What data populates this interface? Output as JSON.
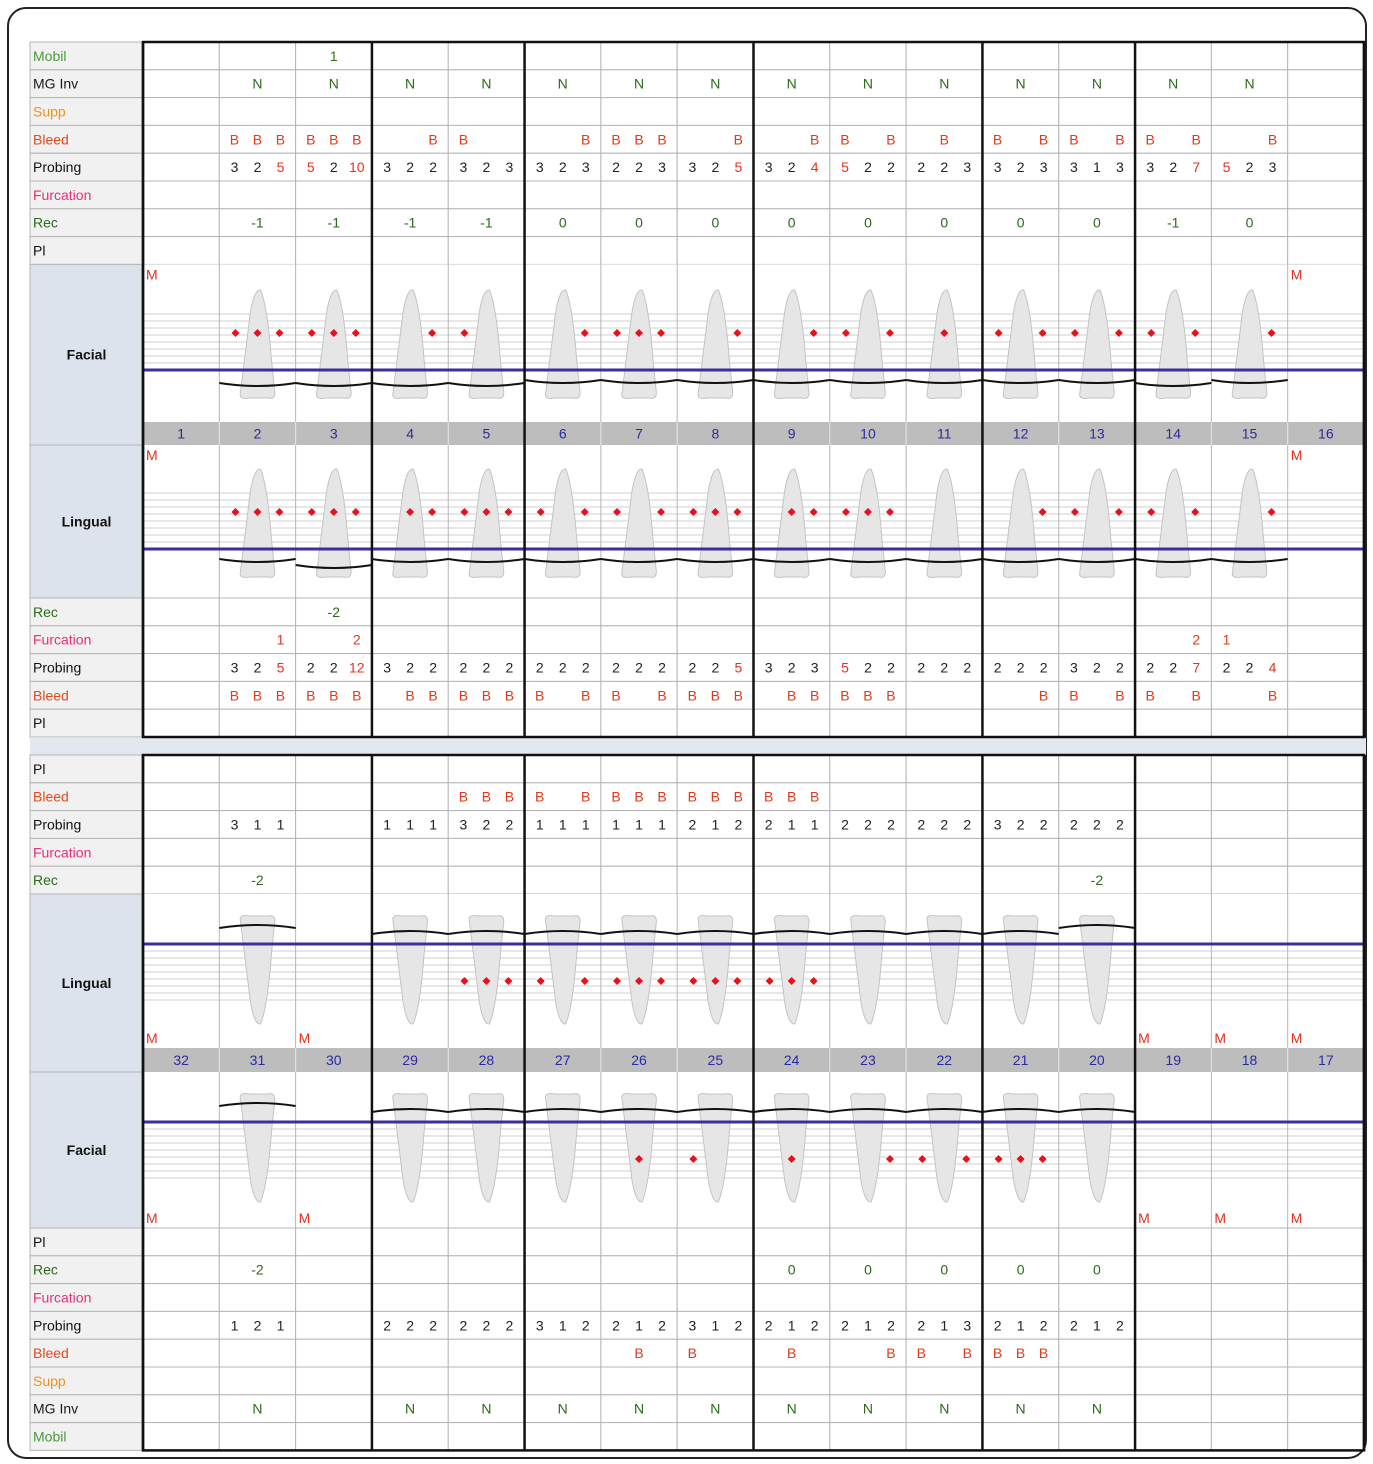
{
  "upper": {
    "facial_rows": [
      {
        "label": "Mobil",
        "label_color": "#4a9a3a",
        "value_color": "#2a7a1a",
        "cells": [
          null,
          null,
          1,
          null,
          null,
          null,
          null,
          null,
          null,
          null,
          null,
          null,
          null,
          null,
          null,
          null
        ]
      },
      {
        "label": "MG Inv",
        "label_color": "#1a1a1a",
        "value_color": "#2a6a1a",
        "cells": [
          null,
          "N",
          "N",
          "N",
          "N",
          "N",
          "N",
          "N",
          "N",
          "N",
          "N",
          "N",
          "N",
          "N",
          "N",
          null
        ]
      },
      {
        "label": "Supp",
        "label_color": "#f09020",
        "cells": [
          null,
          null,
          null,
          null,
          null,
          null,
          null,
          null,
          null,
          null,
          null,
          null,
          null,
          null,
          null,
          null
        ]
      },
      {
        "label": "Bleed",
        "label_color": "#e04a20",
        "value_color": "#e03a1a",
        "cells": [
          null,
          [
            "B",
            "B",
            "B"
          ],
          [
            "B",
            "B",
            "B"
          ],
          [
            null,
            null,
            "B"
          ],
          [
            "B",
            null,
            null
          ],
          [
            null,
            null,
            "B"
          ],
          [
            "B",
            "B",
            "B"
          ],
          [
            null,
            null,
            "B"
          ],
          [
            null,
            null,
            "B"
          ],
          [
            "B",
            null,
            "B"
          ],
          [
            null,
            "B",
            null
          ],
          [
            "B",
            null,
            "B"
          ],
          [
            "B",
            null,
            "B"
          ],
          [
            "B",
            null,
            "B"
          ],
          [
            null,
            null,
            "B"
          ],
          null
        ]
      },
      {
        "label": "Probing",
        "label_color": "#111111",
        "value_color": "#222222",
        "cells": [
          null,
          [
            3,
            2,
            5
          ],
          [
            5,
            2,
            10
          ],
          [
            3,
            2,
            2
          ],
          [
            3,
            2,
            3
          ],
          [
            3,
            2,
            3
          ],
          [
            2,
            2,
            3
          ],
          [
            3,
            2,
            5
          ],
          [
            3,
            2,
            4
          ],
          [
            5,
            2,
            2
          ],
          [
            2,
            2,
            3
          ],
          [
            3,
            2,
            3
          ],
          [
            3,
            1,
            3
          ],
          [
            3,
            2,
            7
          ],
          [
            5,
            2,
            3
          ],
          null
        ]
      },
      {
        "label": "Furcation",
        "label_color": "#e8307a",
        "cells": [
          null,
          null,
          null,
          null,
          null,
          null,
          null,
          null,
          null,
          null,
          null,
          null,
          null,
          null,
          null,
          null
        ]
      },
      {
        "label": "Rec",
        "label_color": "#2a6a1a",
        "value_color": "#2a6a1a",
        "cells": [
          null,
          -1,
          -1,
          -1,
          -1,
          0,
          0,
          0,
          0,
          0,
          0,
          0,
          0,
          -1,
          0,
          null
        ]
      },
      {
        "label": "Pl",
        "label_color": "#111111",
        "cells": [
          null,
          null,
          null,
          null,
          null,
          null,
          null,
          null,
          null,
          null,
          null,
          null,
          null,
          null,
          null,
          null
        ]
      }
    ],
    "facial_panel": {
      "label": "Facial",
      "marks": [
        "M",
        null,
        null,
        null,
        null,
        null,
        null,
        null,
        null,
        null,
        null,
        null,
        null,
        null,
        null,
        "M"
      ]
    },
    "tooth_numbers": [
      1,
      2,
      3,
      4,
      5,
      6,
      7,
      8,
      9,
      10,
      11,
      12,
      13,
      14,
      15,
      16
    ],
    "lingual_panel": {
      "label": "Lingual",
      "marks": [
        "M",
        null,
        null,
        null,
        null,
        null,
        null,
        null,
        null,
        null,
        null,
        null,
        null,
        null,
        null,
        "M"
      ]
    },
    "lingual_rows": [
      {
        "label": "Rec",
        "label_color": "#2a6a1a",
        "value_color": "#2a6a1a",
        "cells": [
          null,
          null,
          -2,
          null,
          null,
          null,
          null,
          null,
          null,
          null,
          null,
          null,
          null,
          null,
          null,
          null
        ]
      },
      {
        "label": "Furcation",
        "label_color": "#e8307a",
        "value_color": "#e03a1a",
        "cells": [
          null,
          [
            null,
            null,
            1
          ],
          [
            null,
            null,
            2
          ],
          null,
          null,
          null,
          null,
          null,
          null,
          null,
          null,
          null,
          null,
          [
            null,
            null,
            2
          ],
          [
            1,
            null,
            null
          ],
          null
        ]
      },
      {
        "label": "Probing",
        "label_color": "#111111",
        "value_color": "#222222",
        "cells": [
          null,
          [
            3,
            2,
            5
          ],
          [
            2,
            2,
            12
          ],
          [
            3,
            2,
            2
          ],
          [
            2,
            2,
            2
          ],
          [
            2,
            2,
            2
          ],
          [
            2,
            2,
            2
          ],
          [
            2,
            2,
            5
          ],
          [
            3,
            2,
            3
          ],
          [
            5,
            2,
            2
          ],
          [
            2,
            2,
            2
          ],
          [
            2,
            2,
            2
          ],
          [
            3,
            2,
            2
          ],
          [
            2,
            2,
            7
          ],
          [
            2,
            2,
            4
          ],
          null
        ]
      },
      {
        "label": "Bleed",
        "label_color": "#e04a20",
        "value_color": "#e03a1a",
        "cells": [
          null,
          [
            "B",
            "B",
            "B"
          ],
          [
            "B",
            "B",
            "B"
          ],
          [
            null,
            "B",
            "B"
          ],
          [
            "B",
            "B",
            "B"
          ],
          [
            "B",
            null,
            "B"
          ],
          [
            "B",
            null,
            "B"
          ],
          [
            "B",
            "B",
            "B"
          ],
          [
            null,
            "B",
            "B"
          ],
          [
            "B",
            "B",
            "B"
          ],
          null,
          [
            null,
            null,
            "B"
          ],
          [
            "B",
            null,
            "B"
          ],
          [
            "B",
            null,
            "B"
          ],
          [
            null,
            null,
            "B"
          ],
          null
        ]
      },
      {
        "label": "Pl",
        "label_color": "#111111",
        "cells": [
          null,
          null,
          null,
          null,
          null,
          null,
          null,
          null,
          null,
          null,
          null,
          null,
          null,
          null,
          null,
          null
        ]
      }
    ]
  },
  "lower": {
    "lingual_rows": [
      {
        "label": "Pl",
        "label_color": "#111111",
        "cells": [
          null,
          null,
          null,
          null,
          null,
          null,
          null,
          null,
          null,
          null,
          null,
          null,
          null,
          null,
          null,
          null
        ]
      },
      {
        "label": "Bleed",
        "label_color": "#e04a20",
        "value_color": "#e03a1a",
        "cells": [
          null,
          null,
          null,
          null,
          [
            "B",
            "B",
            "B"
          ],
          [
            "B",
            null,
            "B"
          ],
          [
            "B",
            "B",
            "B"
          ],
          [
            "B",
            "B",
            "B"
          ],
          [
            "B",
            "B",
            "B"
          ],
          null,
          null,
          null,
          null,
          null,
          null,
          null
        ]
      },
      {
        "label": "Probing",
        "label_color": "#111111",
        "value_color": "#222222",
        "cells": [
          null,
          [
            3,
            1,
            1
          ],
          null,
          [
            1,
            1,
            1
          ],
          [
            3,
            2,
            2
          ],
          [
            1,
            1,
            1
          ],
          [
            1,
            1,
            1
          ],
          [
            2,
            1,
            2
          ],
          [
            2,
            1,
            1
          ],
          [
            2,
            2,
            2
          ],
          [
            2,
            2,
            2
          ],
          [
            3,
            2,
            2
          ],
          [
            2,
            2,
            2
          ],
          null,
          null,
          null
        ]
      },
      {
        "label": "Furcation",
        "label_color": "#e8307a",
        "cells": [
          null,
          null,
          null,
          null,
          null,
          null,
          null,
          null,
          null,
          null,
          null,
          null,
          null,
          null,
          null,
          null
        ]
      },
      {
        "label": "Rec",
        "label_color": "#2a6a1a",
        "value_color": "#2a6a1a",
        "cells": [
          null,
          -2,
          null,
          null,
          null,
          null,
          null,
          null,
          null,
          null,
          null,
          null,
          -2,
          null,
          null,
          null
        ]
      }
    ],
    "lingual_panel": {
      "label": "Lingual",
      "marks": [
        "M",
        null,
        "M",
        null,
        null,
        null,
        null,
        null,
        null,
        null,
        null,
        null,
        null,
        "M",
        "M",
        "M"
      ]
    },
    "tooth_numbers": [
      32,
      31,
      30,
      29,
      28,
      27,
      26,
      25,
      24,
      23,
      22,
      21,
      20,
      19,
      18,
      17
    ],
    "facial_panel": {
      "label": "Facial",
      "marks": [
        "M",
        null,
        "M",
        null,
        null,
        null,
        null,
        null,
        null,
        null,
        null,
        null,
        null,
        "M",
        "M",
        "M"
      ]
    },
    "facial_rows": [
      {
        "label": "Pl",
        "label_color": "#111111",
        "cells": [
          null,
          null,
          null,
          null,
          null,
          null,
          null,
          null,
          null,
          null,
          null,
          null,
          null,
          null,
          null,
          null
        ]
      },
      {
        "label": "Rec",
        "label_color": "#2a6a1a",
        "value_color": "#2a6a1a",
        "cells": [
          null,
          -2,
          null,
          null,
          null,
          null,
          null,
          null,
          0,
          0,
          0,
          0,
          0,
          null,
          null,
          null
        ]
      },
      {
        "label": "Furcation",
        "label_color": "#e8307a",
        "cells": [
          null,
          null,
          null,
          null,
          null,
          null,
          null,
          null,
          null,
          null,
          null,
          null,
          null,
          null,
          null,
          null
        ]
      },
      {
        "label": "Probing",
        "label_color": "#111111",
        "value_color": "#222222",
        "cells": [
          null,
          [
            1,
            2,
            1
          ],
          null,
          [
            2,
            2,
            2
          ],
          [
            2,
            2,
            2
          ],
          [
            3,
            1,
            2
          ],
          [
            2,
            1,
            2
          ],
          [
            3,
            1,
            2
          ],
          [
            2,
            1,
            2
          ],
          [
            2,
            1,
            2
          ],
          [
            2,
            1,
            3
          ],
          [
            2,
            1,
            2
          ],
          [
            2,
            1,
            2
          ],
          null,
          null,
          null
        ]
      },
      {
        "label": "Bleed",
        "label_color": "#e04a20",
        "value_color": "#e03a1a",
        "cells": [
          null,
          null,
          null,
          null,
          null,
          null,
          [
            null,
            "B",
            null
          ],
          [
            "B",
            null,
            null
          ],
          [
            null,
            "B",
            null
          ],
          [
            null,
            null,
            "B"
          ],
          [
            "B",
            null,
            "B"
          ],
          [
            "B",
            "B",
            "B"
          ],
          null,
          null,
          null,
          null
        ]
      },
      {
        "label": "Supp",
        "label_color": "#f09020",
        "cells": [
          null,
          null,
          null,
          null,
          null,
          null,
          null,
          null,
          null,
          null,
          null,
          null,
          null,
          null,
          null,
          null
        ]
      },
      {
        "label": "MG Inv",
        "label_color": "#1a1a1a",
        "value_color": "#2a6a1a",
        "cells": [
          null,
          "N",
          null,
          "N",
          "N",
          "N",
          "N",
          "N",
          "N",
          "N",
          "N",
          "N",
          "N",
          null,
          null,
          null
        ]
      },
      {
        "label": "Mobil",
        "label_color": "#4a9a3a",
        "cells": [
          null,
          null,
          null,
          null,
          null,
          null,
          null,
          null,
          null,
          null,
          null,
          null,
          null,
          null,
          null,
          null
        ]
      }
    ]
  }
}
